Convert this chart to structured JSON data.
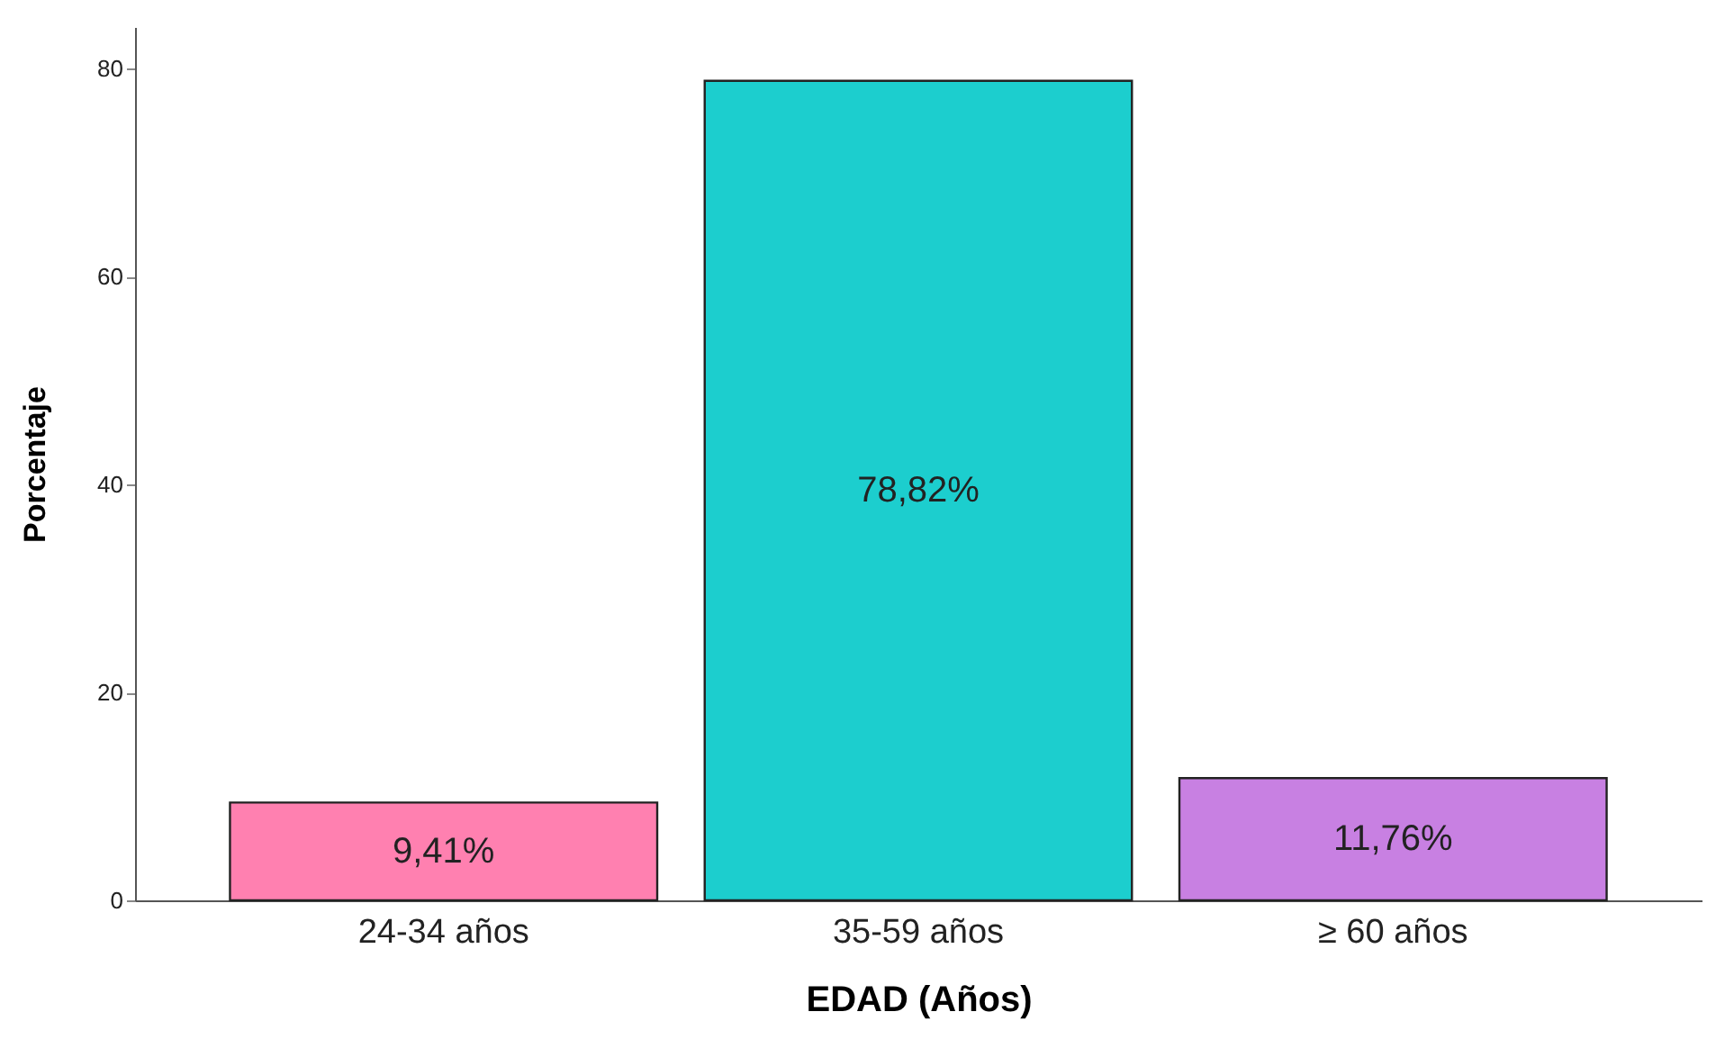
{
  "chart_data": {
    "type": "bar",
    "xlabel": "EDAD (Años)",
    "ylabel": "Porcentaje",
    "categories": [
      "24-34 años",
      "35-59 años",
      "≥ 60 años"
    ],
    "values": [
      9.41,
      78.82,
      11.76
    ],
    "colors": [
      "#ff80b0",
      "#1ccece",
      "#c880e2"
    ],
    "value_labels": [
      "9,41%",
      "78,82%",
      "11,76%"
    ],
    "ylim": [
      0,
      84
    ],
    "yticks": [
      0,
      20,
      40,
      60,
      80
    ],
    "grid": false
  }
}
